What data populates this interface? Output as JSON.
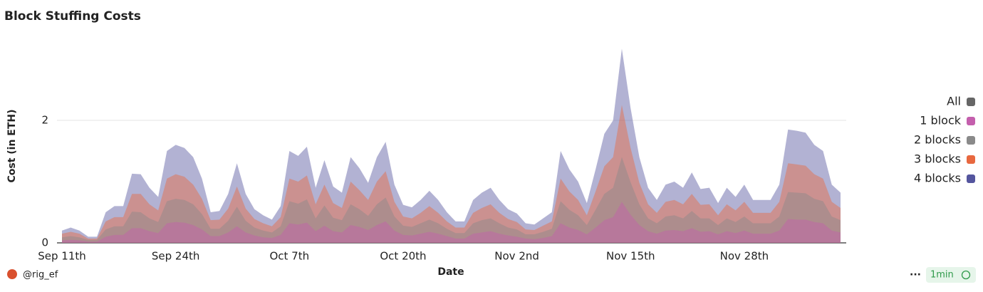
{
  "chart_data": {
    "type": "area",
    "title": "Block Stuffing Costs",
    "y_label": "Cost (in ETH)",
    "x_label": "Date",
    "legend_toggle": "All",
    "legend_toggle_color": "#666666",
    "footer_author": "@rig_ef",
    "footer_refresh": "1min",
    "footer_menu": "···",
    "ylim": [
      0,
      3.3
    ],
    "yticks": [
      0,
      2
    ],
    "grid": true,
    "legend": "right",
    "categories": [
      "Sep 11th",
      null,
      null,
      null,
      null,
      null,
      null,
      null,
      null,
      null,
      null,
      null,
      null,
      "Sep 24th",
      null,
      null,
      null,
      null,
      null,
      null,
      null,
      null,
      null,
      null,
      null,
      null,
      "Oct 7th",
      null,
      null,
      null,
      null,
      null,
      null,
      null,
      null,
      null,
      null,
      null,
      null,
      "Oct 20th",
      null,
      null,
      null,
      null,
      null,
      null,
      null,
      null,
      null,
      null,
      null,
      null,
      "Nov 2nd",
      null,
      null,
      null,
      null,
      null,
      null,
      null,
      null,
      null,
      null,
      null,
      null,
      "Nov 15th",
      null,
      null,
      null,
      null,
      null,
      null,
      null,
      null,
      null,
      null,
      null,
      null,
      "Nov 28th",
      null,
      null,
      null,
      null,
      null,
      null,
      null,
      null,
      null,
      null,
      null
    ],
    "series": [
      {
        "name": "1 block",
        "color": "#c45fad",
        "values": [
          0.04,
          0.05,
          0.04,
          0.02,
          0.02,
          0.1,
          0.13,
          0.13,
          0.24,
          0.24,
          0.19,
          0.16,
          0.32,
          0.34,
          0.33,
          0.29,
          0.22,
          0.11,
          0.11,
          0.17,
          0.27,
          0.17,
          0.12,
          0.09,
          0.08,
          0.13,
          0.32,
          0.3,
          0.33,
          0.19,
          0.28,
          0.19,
          0.17,
          0.29,
          0.26,
          0.21,
          0.29,
          0.35,
          0.2,
          0.13,
          0.12,
          0.15,
          0.18,
          0.15,
          0.11,
          0.07,
          0.07,
          0.15,
          0.17,
          0.19,
          0.15,
          0.12,
          0.1,
          0.07,
          0.06,
          0.08,
          0.11,
          0.32,
          0.25,
          0.21,
          0.14,
          0.25,
          0.37,
          0.42,
          0.67,
          0.46,
          0.29,
          0.19,
          0.15,
          0.2,
          0.21,
          0.19,
          0.24,
          0.18,
          0.19,
          0.14,
          0.19,
          0.16,
          0.2,
          0.15,
          0.15,
          0.15,
          0.2,
          0.39,
          0.38,
          0.38,
          0.34,
          0.32,
          0.2,
          0.17
        ]
      },
      {
        "name": "2 blocks",
        "color": "#8a8a8a",
        "values": [
          0.09,
          0.11,
          0.09,
          0.05,
          0.05,
          0.22,
          0.27,
          0.27,
          0.51,
          0.5,
          0.4,
          0.34,
          0.68,
          0.72,
          0.7,
          0.63,
          0.47,
          0.23,
          0.23,
          0.36,
          0.59,
          0.36,
          0.25,
          0.2,
          0.17,
          0.27,
          0.68,
          0.64,
          0.71,
          0.4,
          0.61,
          0.41,
          0.37,
          0.63,
          0.55,
          0.44,
          0.63,
          0.74,
          0.43,
          0.28,
          0.26,
          0.32,
          0.38,
          0.32,
          0.23,
          0.16,
          0.16,
          0.32,
          0.37,
          0.4,
          0.32,
          0.25,
          0.22,
          0.14,
          0.14,
          0.18,
          0.23,
          0.68,
          0.54,
          0.45,
          0.29,
          0.54,
          0.8,
          0.9,
          1.4,
          0.99,
          0.63,
          0.4,
          0.32,
          0.43,
          0.45,
          0.4,
          0.52,
          0.4,
          0.4,
          0.29,
          0.4,
          0.34,
          0.43,
          0.32,
          0.32,
          0.32,
          0.43,
          0.83,
          0.82,
          0.81,
          0.72,
          0.68,
          0.43,
          0.37
        ]
      },
      {
        "name": "3 blocks",
        "color": "#e8683f",
        "values": [
          0.15,
          0.18,
          0.15,
          0.07,
          0.07,
          0.35,
          0.42,
          0.42,
          0.8,
          0.8,
          0.63,
          0.53,
          1.05,
          1.12,
          1.08,
          0.95,
          0.72,
          0.37,
          0.38,
          0.56,
          0.92,
          0.56,
          0.39,
          0.32,
          0.27,
          0.42,
          1.05,
          1.0,
          1.1,
          0.63,
          0.95,
          0.65,
          0.57,
          1.0,
          0.86,
          0.7,
          1.0,
          1.17,
          0.67,
          0.43,
          0.4,
          0.49,
          0.6,
          0.49,
          0.35,
          0.25,
          0.25,
          0.49,
          0.57,
          0.63,
          0.49,
          0.39,
          0.34,
          0.22,
          0.21,
          0.28,
          0.35,
          1.05,
          0.84,
          0.7,
          0.45,
          0.84,
          1.25,
          1.4,
          2.25,
          1.55,
          0.98,
          0.63,
          0.49,
          0.67,
          0.7,
          0.63,
          0.8,
          0.62,
          0.63,
          0.45,
          0.63,
          0.53,
          0.67,
          0.49,
          0.49,
          0.49,
          0.67,
          1.3,
          1.28,
          1.26,
          1.12,
          1.05,
          0.67,
          0.57
        ]
      },
      {
        "name": "4 blocks",
        "color": "#54559e",
        "values": [
          0.2,
          0.25,
          0.2,
          0.1,
          0.1,
          0.5,
          0.6,
          0.6,
          1.13,
          1.12,
          0.9,
          0.75,
          1.5,
          1.6,
          1.55,
          1.4,
          1.05,
          0.5,
          0.52,
          0.8,
          1.3,
          0.8,
          0.55,
          0.45,
          0.38,
          0.6,
          1.5,
          1.42,
          1.57,
          0.9,
          1.35,
          0.92,
          0.82,
          1.4,
          1.22,
          0.98,
          1.4,
          1.65,
          0.95,
          0.62,
          0.58,
          0.7,
          0.85,
          0.7,
          0.5,
          0.35,
          0.35,
          0.7,
          0.82,
          0.9,
          0.7,
          0.55,
          0.48,
          0.32,
          0.3,
          0.4,
          0.5,
          1.5,
          1.2,
          1.0,
          0.65,
          1.2,
          1.78,
          2.0,
          3.17,
          2.2,
          1.4,
          0.9,
          0.7,
          0.95,
          1.0,
          0.9,
          1.15,
          0.88,
          0.9,
          0.65,
          0.9,
          0.75,
          0.95,
          0.7,
          0.7,
          0.7,
          0.95,
          1.85,
          1.83,
          1.8,
          1.6,
          1.5,
          0.95,
          0.82
        ]
      }
    ]
  }
}
